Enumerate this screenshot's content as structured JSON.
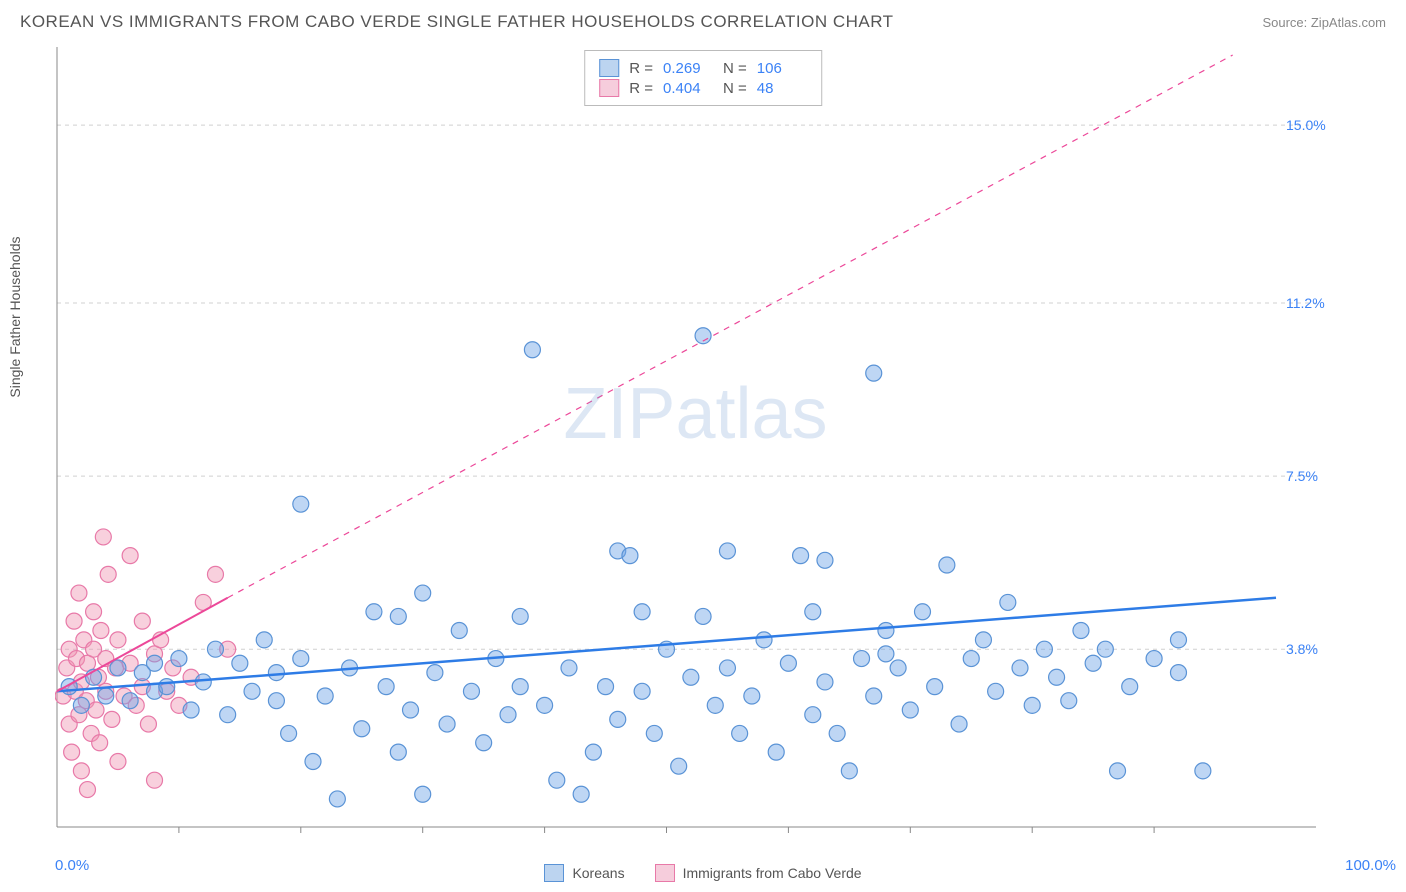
{
  "title": "KOREAN VS IMMIGRANTS FROM CABO VERDE SINGLE FATHER HOUSEHOLDS CORRELATION CHART",
  "source": "Source: ZipAtlas.com",
  "ylabel": "Single Father Households",
  "watermark": "ZIPatlas",
  "chart": {
    "type": "scatter",
    "xlim": [
      0,
      100
    ],
    "ylim": [
      0,
      16.5
    ],
    "x_min_label": "0.0%",
    "x_max_label": "100.0%",
    "y_ticks": [
      3.8,
      7.5,
      11.2,
      15.0
    ],
    "y_tick_labels": [
      "3.8%",
      "7.5%",
      "11.2%",
      "15.0%"
    ],
    "grid_color": "#d0d0d0",
    "axis_color": "#888888",
    "background_color": "#ffffff",
    "x_minor_ticks": [
      10,
      20,
      30,
      40,
      50,
      60,
      70,
      80,
      90
    ],
    "series": [
      {
        "name": "Koreans",
        "color_fill": "rgba(110,165,230,0.45)",
        "color_stroke": "#5a93d6",
        "swatch_fill": "#bcd4f0",
        "swatch_border": "#5a93d6",
        "marker_radius": 8,
        "R": "0.269",
        "N": "106",
        "trend": {
          "x1": 0,
          "y1": 2.9,
          "x2": 100,
          "y2": 4.9,
          "dash_from_x": null,
          "color": "#2e7ce6",
          "width": 2.5
        },
        "points": [
          [
            1,
            3.0
          ],
          [
            2,
            2.6
          ],
          [
            3,
            3.2
          ],
          [
            4,
            2.8
          ],
          [
            5,
            3.4
          ],
          [
            6,
            2.7
          ],
          [
            7,
            3.3
          ],
          [
            8,
            2.9
          ],
          [
            8,
            3.5
          ],
          [
            9,
            3.0
          ],
          [
            10,
            3.6
          ],
          [
            11,
            2.5
          ],
          [
            12,
            3.1
          ],
          [
            13,
            3.8
          ],
          [
            14,
            2.4
          ],
          [
            15,
            3.5
          ],
          [
            16,
            2.9
          ],
          [
            17,
            4.0
          ],
          [
            18,
            2.7
          ],
          [
            18,
            3.3
          ],
          [
            19,
            2.0
          ],
          [
            20,
            3.6
          ],
          [
            20,
            6.9
          ],
          [
            21,
            1.4
          ],
          [
            22,
            2.8
          ],
          [
            23,
            0.6
          ],
          [
            24,
            3.4
          ],
          [
            25,
            2.1
          ],
          [
            26,
            4.6
          ],
          [
            27,
            3.0
          ],
          [
            28,
            1.6
          ],
          [
            29,
            2.5
          ],
          [
            30,
            5.0
          ],
          [
            30,
            0.7
          ],
          [
            31,
            3.3
          ],
          [
            32,
            2.2
          ],
          [
            33,
            4.2
          ],
          [
            34,
            2.9
          ],
          [
            35,
            1.8
          ],
          [
            36,
            3.6
          ],
          [
            37,
            2.4
          ],
          [
            38,
            3.0
          ],
          [
            39,
            10.2
          ],
          [
            40,
            2.6
          ],
          [
            41,
            1.0
          ],
          [
            42,
            3.4
          ],
          [
            43,
            0.7
          ],
          [
            44,
            1.6
          ],
          [
            45,
            3.0
          ],
          [
            46,
            2.3
          ],
          [
            46,
            5.9
          ],
          [
            47,
            5.8
          ],
          [
            48,
            2.9
          ],
          [
            49,
            2.0
          ],
          [
            50,
            3.8
          ],
          [
            51,
            1.3
          ],
          [
            52,
            3.2
          ],
          [
            53,
            4.5
          ],
          [
            53,
            10.5
          ],
          [
            54,
            2.6
          ],
          [
            55,
            5.9
          ],
          [
            55,
            3.4
          ],
          [
            56,
            2.0
          ],
          [
            57,
            2.8
          ],
          [
            58,
            4.0
          ],
          [
            59,
            1.6
          ],
          [
            60,
            3.5
          ],
          [
            61,
            5.8
          ],
          [
            62,
            2.4
          ],
          [
            62,
            4.6
          ],
          [
            63,
            3.1
          ],
          [
            64,
            2.0
          ],
          [
            65,
            1.2
          ],
          [
            66,
            3.6
          ],
          [
            67,
            9.7
          ],
          [
            67,
            2.8
          ],
          [
            68,
            4.2
          ],
          [
            69,
            3.4
          ],
          [
            70,
            2.5
          ],
          [
            71,
            4.6
          ],
          [
            72,
            3.0
          ],
          [
            73,
            5.6
          ],
          [
            74,
            2.2
          ],
          [
            75,
            3.6
          ],
          [
            76,
            4.0
          ],
          [
            77,
            2.9
          ],
          [
            78,
            4.8
          ],
          [
            79,
            3.4
          ],
          [
            80,
            2.6
          ],
          [
            81,
            3.8
          ],
          [
            82,
            3.2
          ],
          [
            83,
            2.7
          ],
          [
            84,
            4.2
          ],
          [
            85,
            3.5
          ],
          [
            86,
            3.8
          ],
          [
            87,
            1.2
          ],
          [
            88,
            3.0
          ],
          [
            90,
            3.6
          ],
          [
            92,
            3.3
          ],
          [
            94,
            1.2
          ],
          [
            92,
            4.0
          ],
          [
            68,
            3.7
          ],
          [
            48,
            4.6
          ],
          [
            38,
            4.5
          ],
          [
            28,
            4.5
          ],
          [
            63,
            5.7
          ]
        ]
      },
      {
        "name": "Immigrants from Cabo Verde",
        "color_fill": "rgba(240,150,180,0.45)",
        "color_stroke": "#e879a8",
        "swatch_fill": "#f6cddc",
        "swatch_border": "#e879a8",
        "marker_radius": 8,
        "R": "0.404",
        "N": "48",
        "trend": {
          "x1": 0,
          "y1": 2.9,
          "x2": 100,
          "y2": 17.0,
          "dash_from_x": 14,
          "solid_end_x": 14,
          "solid_end_y": 4.9,
          "color": "#ec4899",
          "width": 2
        },
        "points": [
          [
            0.5,
            2.8
          ],
          [
            0.8,
            3.4
          ],
          [
            1.0,
            2.2
          ],
          [
            1.0,
            3.8
          ],
          [
            1.2,
            1.6
          ],
          [
            1.4,
            4.4
          ],
          [
            1.5,
            2.9
          ],
          [
            1.6,
            3.6
          ],
          [
            1.8,
            2.4
          ],
          [
            1.8,
            5.0
          ],
          [
            2.0,
            3.1
          ],
          [
            2.0,
            1.2
          ],
          [
            2.2,
            4.0
          ],
          [
            2.4,
            2.7
          ],
          [
            2.5,
            3.5
          ],
          [
            2.5,
            0.8
          ],
          [
            2.8,
            2.0
          ],
          [
            3.0,
            3.8
          ],
          [
            3.0,
            4.6
          ],
          [
            3.2,
            2.5
          ],
          [
            3.4,
            3.2
          ],
          [
            3.5,
            1.8
          ],
          [
            3.6,
            4.2
          ],
          [
            3.8,
            6.2
          ],
          [
            4.0,
            2.9
          ],
          [
            4.0,
            3.6
          ],
          [
            4.2,
            5.4
          ],
          [
            4.5,
            2.3
          ],
          [
            4.8,
            3.4
          ],
          [
            5.0,
            4.0
          ],
          [
            5.0,
            1.4
          ],
          [
            5.5,
            2.8
          ],
          [
            6.0,
            3.5
          ],
          [
            6.0,
            5.8
          ],
          [
            6.5,
            2.6
          ],
          [
            7.0,
            3.0
          ],
          [
            7.0,
            4.4
          ],
          [
            7.5,
            2.2
          ],
          [
            8.0,
            3.7
          ],
          [
            8.0,
            1.0
          ],
          [
            8.5,
            4.0
          ],
          [
            9.0,
            2.9
          ],
          [
            9.5,
            3.4
          ],
          [
            10.0,
            2.6
          ],
          [
            11.0,
            3.2
          ],
          [
            12.0,
            4.8
          ],
          [
            13.0,
            5.4
          ],
          [
            14.0,
            3.8
          ]
        ]
      }
    ]
  },
  "bottom_legend": [
    {
      "label": "Koreans",
      "fill": "#bcd4f0",
      "border": "#5a93d6"
    },
    {
      "label": "Immigrants from Cabo Verde",
      "fill": "#f6cddc",
      "border": "#e879a8"
    }
  ]
}
